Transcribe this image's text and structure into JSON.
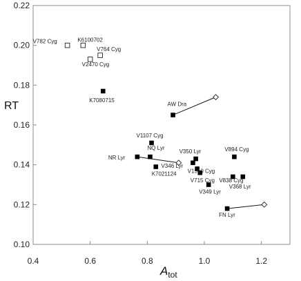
{
  "chart_data": {
    "type": "scatter",
    "title": "",
    "xlabel": "A",
    "xlabel_sub": "tot",
    "ylabel": "RT",
    "xlim": [
      0.4,
      1.3
    ],
    "ylim": [
      0.1,
      0.22
    ],
    "xticks": [
      "0.4",
      "0.6",
      "0.8",
      "1.0",
      "1.2"
    ],
    "yticks": [
      "0.10",
      "0.12",
      "0.14",
      "0.16",
      "0.18",
      "0.20",
      "0.22"
    ],
    "grid": false,
    "points": [
      {
        "label": "V782 Cyg",
        "x": 0.52,
        "y": 0.2,
        "marker": "open-square"
      },
      {
        "label": "K6100702",
        "x": 0.575,
        "y": 0.2,
        "marker": "open-square"
      },
      {
        "label": "V764 Cyg",
        "x": 0.635,
        "y": 0.195,
        "marker": "open-square"
      },
      {
        "label": "V2470 Cyg",
        "x": 0.6,
        "y": 0.193,
        "marker": "open-square"
      },
      {
        "label": "K7080715",
        "x": 0.645,
        "y": 0.177,
        "marker": "filled-square"
      },
      {
        "label": "AW Dra",
        "x": 0.89,
        "y": 0.165,
        "marker": "filled-square"
      },
      {
        "label": "",
        "x": 1.04,
        "y": 0.174,
        "marker": "open-diamond"
      },
      {
        "label": "V1107 Cyg",
        "x": 0.815,
        "y": 0.151,
        "marker": "filled-square"
      },
      {
        "label": "NQ Lyr",
        "x": 0.81,
        "y": 0.144,
        "marker": "filled-square"
      },
      {
        "label": "NR Lyr",
        "x": 0.765,
        "y": 0.144,
        "marker": "filled-square"
      },
      {
        "label": "",
        "x": 0.91,
        "y": 0.141,
        "marker": "open-diamond"
      },
      {
        "label": "K7021124",
        "x": 0.83,
        "y": 0.139,
        "marker": "filled-square"
      },
      {
        "label": "V350 Lyr",
        "x": 0.97,
        "y": 0.143,
        "marker": "filled-square"
      },
      {
        "label": "V346 Lyr",
        "x": 0.96,
        "y": 0.141,
        "marker": "filled-square"
      },
      {
        "label": "V1510 Cyg",
        "x": 0.975,
        "y": 0.138,
        "marker": "filled-square"
      },
      {
        "label": "V715 Cyg",
        "x": 0.985,
        "y": 0.136,
        "marker": "filled-square"
      },
      {
        "label": "V894 Cyg",
        "x": 1.105,
        "y": 0.144,
        "marker": "filled-square"
      },
      {
        "label": "V838 Cyg",
        "x": 1.1,
        "y": 0.134,
        "marker": "filled-square"
      },
      {
        "label": "V368 Lyr",
        "x": 1.135,
        "y": 0.134,
        "marker": "filled-square"
      },
      {
        "label": "V349 Lyr",
        "x": 1.015,
        "y": 0.13,
        "marker": "filled-square"
      },
      {
        "label": "FN Lyr",
        "x": 1.08,
        "y": 0.118,
        "marker": "filled-square"
      },
      {
        "label": "",
        "x": 1.21,
        "y": 0.12,
        "marker": "open-diamond"
      }
    ],
    "connectors": [
      {
        "from": [
          0.89,
          0.165
        ],
        "to": [
          1.04,
          0.174
        ]
      },
      {
        "from": [
          0.765,
          0.144
        ],
        "to": [
          0.91,
          0.141
        ]
      },
      {
        "from": [
          1.08,
          0.118
        ],
        "to": [
          1.21,
          0.12
        ]
      }
    ]
  }
}
